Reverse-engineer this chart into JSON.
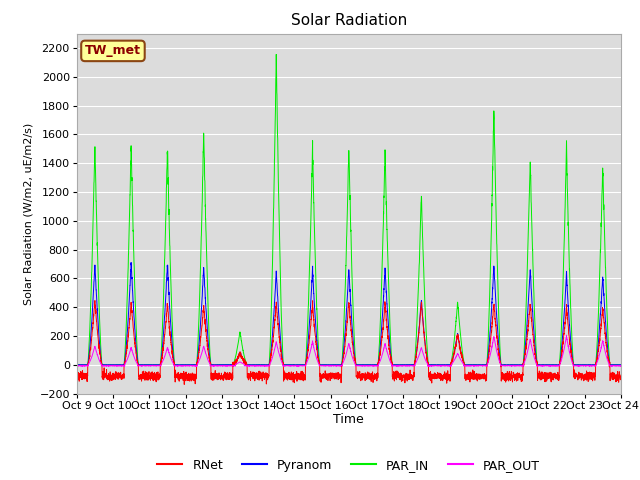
{
  "title": "Solar Radiation",
  "ylabel": "Solar Radiation (W/m2, uE/m2/s)",
  "xlabel": "Time",
  "ylim": [
    -200,
    2300
  ],
  "yticks": [
    -200,
    0,
    200,
    400,
    600,
    800,
    1000,
    1200,
    1400,
    1600,
    1800,
    2000,
    2200
  ],
  "xtick_labels": [
    "Oct 9",
    "Oct 10",
    "Oct 11",
    "Oct 12",
    "Oct 13",
    "Oct 14",
    "Oct 15",
    "Oct 16",
    "Oct 17",
    "Oct 18",
    "Oct 19",
    "Oct 20",
    "Oct 21",
    "Oct 22",
    "Oct 23",
    "Oct 24"
  ],
  "colors": {
    "RNet": "#ff0000",
    "Pyranom": "#0000ff",
    "PAR_IN": "#00ee00",
    "PAR_OUT": "#ff00ff"
  },
  "legend_label": "TW_met",
  "legend_box_color": "#ffff99",
  "legend_box_edge": "#8B4513",
  "bg_color": "#dcdcdc",
  "par_in_peaks": [
    1530,
    1520,
    1500,
    1620,
    230,
    2150,
    1500,
    1510,
    1510,
    1180,
    440,
    1800,
    1430,
    1510,
    1390
  ],
  "pyranom_peaks": [
    700,
    710,
    700,
    680,
    90,
    650,
    660,
    670,
    680,
    450,
    220,
    700,
    670,
    630,
    620
  ],
  "rnet_peaks": [
    450,
    430,
    420,
    410,
    80,
    430,
    420,
    440,
    430,
    430,
    210,
    430,
    430,
    400,
    400
  ],
  "par_out_peaks": [
    130,
    120,
    120,
    130,
    20,
    160,
    160,
    150,
    150,
    120,
    80,
    200,
    180,
    200,
    170
  ],
  "rnet_night": -80,
  "n_days": 15,
  "ppd": 288
}
